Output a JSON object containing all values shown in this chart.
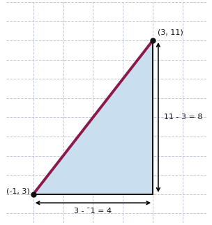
{
  "point1": [
    -1,
    3
  ],
  "point2": [
    3,
    11
  ],
  "triangle_fill_color": "#c9dff0",
  "hypotenuse_color": "#8b1a4a",
  "hypotenuse_linewidth": 2.8,
  "side_color": "#111111",
  "side_linewidth": 1.5,
  "dot_color": "#111111",
  "dot_size": 5,
  "label_p1": "(-1, 3)",
  "label_p2": "(3, 11)",
  "horiz_label": "3 - ¯1 = 4",
  "vert_label": "11 - 3 = 8",
  "background_color": "#ffffff",
  "grid_color": "#c0c8d8",
  "xlim": [
    -1.9,
    4.8
  ],
  "ylim": [
    1.5,
    13.0
  ],
  "figsize": [
    3.04,
    3.23
  ],
  "dpi": 100
}
